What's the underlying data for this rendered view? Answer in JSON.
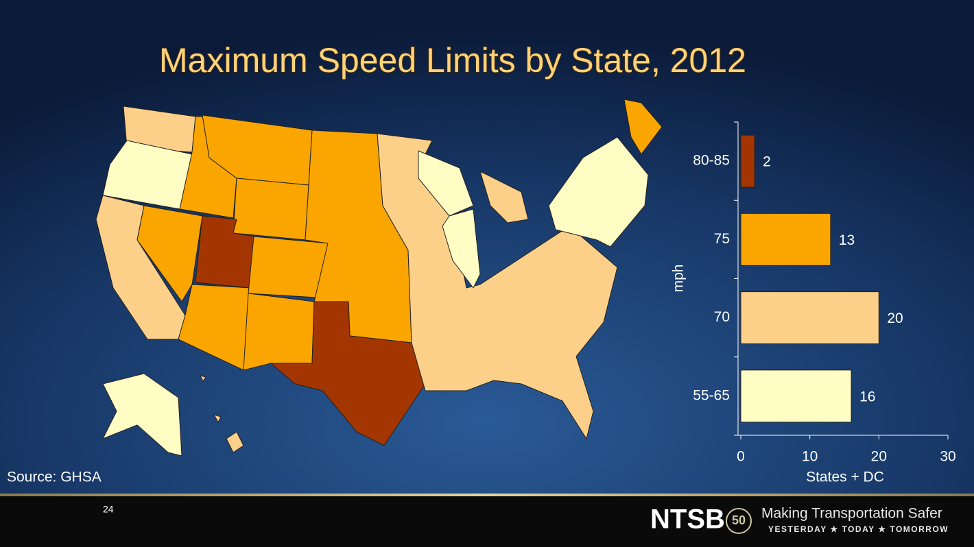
{
  "chart_data": {
    "type": "hbar",
    "title": "Maximum Speed Limits by State, 2012",
    "categories": [
      "80-85",
      "75",
      "70",
      "55-65"
    ],
    "values": [
      2,
      13,
      20,
      16
    ],
    "colors": [
      "#a33600",
      "#fba500",
      "#fdd08a",
      "#fffdc4"
    ],
    "xlim": [
      0,
      30
    ],
    "xticks": [
      0,
      10,
      20,
      30
    ],
    "xlabel": "States + DC",
    "ylabel": "mph"
  },
  "source": "Source: GHSA",
  "footer": {
    "page": "24",
    "logo": "NTSB",
    "badge": "50",
    "tagline": "Making Transportation Safer",
    "motto": "YESTERDAY ★ TODAY ★ TOMORROW"
  }
}
